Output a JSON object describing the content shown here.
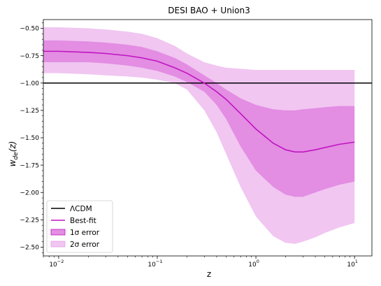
{
  "chart_data": {
    "type": "line",
    "title": "DESI BAO + Union3",
    "xlabel": "z",
    "ylabel": "w_de(z)",
    "xscale": "log",
    "xlim": [
      0.007,
      15
    ],
    "ylim": [
      -2.58,
      -0.42
    ],
    "xticks": [
      {
        "value": 0.01,
        "label": "10",
        "exp": "−2"
      },
      {
        "value": 0.1,
        "label": "10",
        "exp": "−1"
      },
      {
        "value": 1,
        "label": "10",
        "exp": "0"
      },
      {
        "value": 10,
        "label": "10",
        "exp": "1"
      }
    ],
    "yticks": [
      {
        "value": -0.5,
        "label": "−0.50"
      },
      {
        "value": -0.75,
        "label": "−0.75"
      },
      {
        "value": -1.0,
        "label": "−1.00"
      },
      {
        "value": -1.25,
        "label": "−1.25"
      },
      {
        "value": -1.5,
        "label": "−1.50"
      },
      {
        "value": -1.75,
        "label": "−1.75"
      },
      {
        "value": -2.0,
        "label": "−2.00"
      },
      {
        "value": -2.25,
        "label": "−2.25"
      },
      {
        "value": -2.5,
        "label": "−2.50"
      }
    ],
    "reference_line": {
      "name": "ΛCDM",
      "y": -1.0,
      "color": "#000000"
    },
    "series": [
      {
        "name": "Best-fit",
        "color": "#c014c0",
        "x": [
          0.007,
          0.01,
          0.02,
          0.03,
          0.05,
          0.07,
          0.1,
          0.15,
          0.2,
          0.3,
          0.4,
          0.5,
          0.7,
          1.0,
          1.5,
          2.0,
          2.5,
          3.0,
          4.0,
          5.0,
          7.0,
          10.0
        ],
        "y": [
          -0.71,
          -0.71,
          -0.72,
          -0.73,
          -0.75,
          -0.77,
          -0.8,
          -0.86,
          -0.91,
          -1.0,
          -1.08,
          -1.15,
          -1.28,
          -1.42,
          -1.55,
          -1.61,
          -1.63,
          -1.63,
          -1.61,
          -1.59,
          -1.56,
          -1.54
        ]
      }
    ],
    "bands": [
      {
        "name": "2σ error",
        "color": "#f1c6f1",
        "x": [
          0.007,
          0.01,
          0.02,
          0.03,
          0.05,
          0.07,
          0.1,
          0.15,
          0.2,
          0.3,
          0.4,
          0.5,
          0.7,
          1.0,
          1.5,
          2.0,
          2.5,
          3.0,
          4.0,
          5.0,
          7.0,
          10.0
        ],
        "upper": [
          -0.49,
          -0.49,
          -0.5,
          -0.51,
          -0.53,
          -0.55,
          -0.59,
          -0.66,
          -0.73,
          -0.81,
          -0.84,
          -0.86,
          -0.87,
          -0.88,
          -0.88,
          -0.88,
          -0.88,
          -0.88,
          -0.88,
          -0.88,
          -0.88,
          -0.88
        ],
        "lower": [
          -0.91,
          -0.91,
          -0.92,
          -0.93,
          -0.94,
          -0.95,
          -0.97,
          -1.0,
          -1.06,
          -1.25,
          -1.45,
          -1.65,
          -1.95,
          -2.22,
          -2.4,
          -2.46,
          -2.47,
          -2.45,
          -2.41,
          -2.37,
          -2.32,
          -2.28
        ]
      },
      {
        "name": "1σ error",
        "color": "#e38de3",
        "x": [
          0.007,
          0.01,
          0.02,
          0.03,
          0.05,
          0.07,
          0.1,
          0.15,
          0.2,
          0.3,
          0.4,
          0.5,
          0.7,
          1.0,
          1.5,
          2.0,
          2.5,
          3.0,
          4.0,
          5.0,
          7.0,
          10.0
        ],
        "upper": [
          -0.61,
          -0.61,
          -0.62,
          -0.63,
          -0.65,
          -0.67,
          -0.71,
          -0.77,
          -0.83,
          -0.93,
          -1.0,
          -1.06,
          -1.14,
          -1.2,
          -1.24,
          -1.25,
          -1.25,
          -1.24,
          -1.23,
          -1.22,
          -1.21,
          -1.21
        ],
        "lower": [
          -0.81,
          -0.81,
          -0.81,
          -0.82,
          -0.84,
          -0.86,
          -0.89,
          -0.94,
          -0.99,
          -1.08,
          -1.2,
          -1.33,
          -1.58,
          -1.8,
          -1.95,
          -2.02,
          -2.04,
          -2.04,
          -2.0,
          -1.97,
          -1.93,
          -1.9
        ]
      }
    ],
    "legend": {
      "position": "lower-left",
      "entries": [
        {
          "name": "ΛCDM",
          "kind": "line",
          "color": "#000000"
        },
        {
          "name": "Best-fit",
          "kind": "line",
          "color": "#c014c0"
        },
        {
          "name": "1σ error",
          "kind": "patch",
          "color": "#e38de3",
          "edge": "#c014c0"
        },
        {
          "name": "2σ error",
          "kind": "patch",
          "color": "#f1c6f1",
          "edge": "#e5a3e5"
        }
      ]
    }
  }
}
